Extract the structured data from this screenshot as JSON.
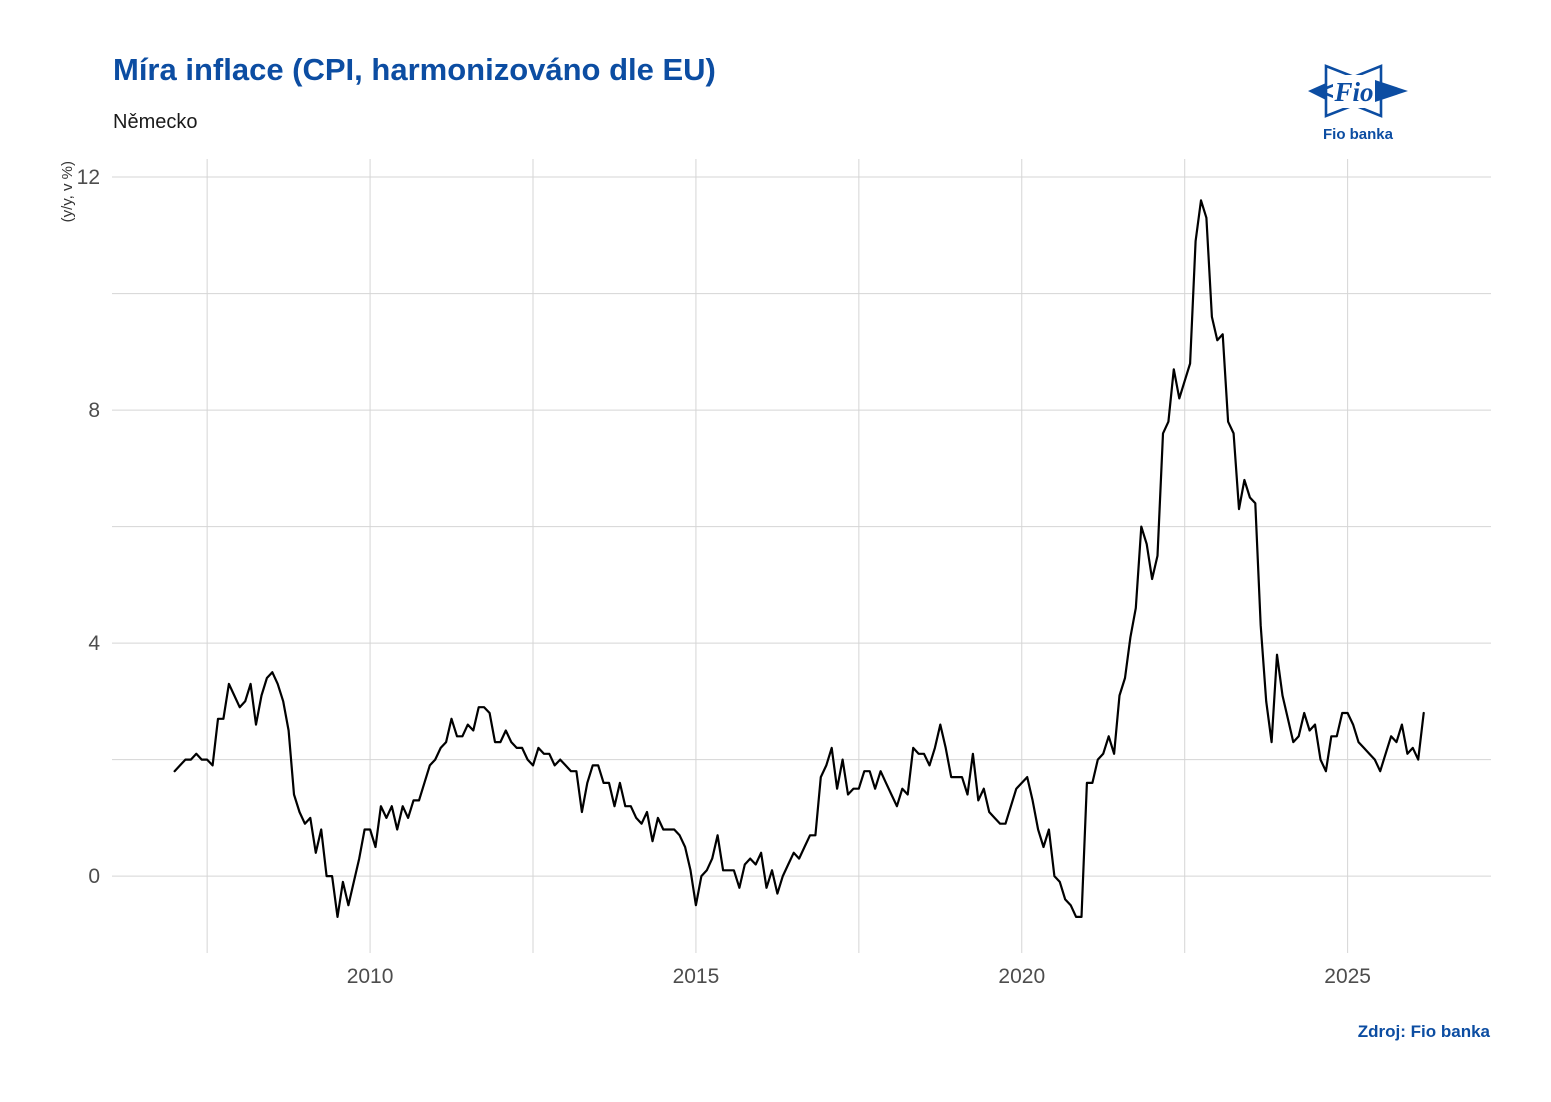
{
  "page": {
    "background": "#ffffff"
  },
  "header": {
    "title": "Míra inflace (CPI, harmonizováno dle EU)",
    "subtitle": "Německo",
    "title_color": "#0c4da2"
  },
  "logo": {
    "monogram": "Fio",
    "caption": "Fio banka",
    "color": "#0c4da2"
  },
  "footer": {
    "source": "Zdroj: Fio banka"
  },
  "chart_data": {
    "type": "line",
    "title": "Míra inflace (CPI, harmonizováno dle EU)",
    "subtitle": "Německo",
    "ylabel": "(y/y, v %)",
    "xlabel": "",
    "x_start": 2007.0,
    "x_step": 0.083333,
    "frequency": "monthly",
    "xlim": [
      2006.04,
      2027.2
    ],
    "ylim": [
      -1.32,
      12.31
    ],
    "x_ticks": [
      2010,
      2015,
      2020,
      2025
    ],
    "x_tick_labels": [
      "2010",
      "2015",
      "2020",
      "2025"
    ],
    "x_gridlines": [
      2007.5,
      2010,
      2012.5,
      2015,
      2017.5,
      2020,
      2022.5,
      2025
    ],
    "y_ticks": [
      0,
      4,
      8,
      12
    ],
    "y_tick_labels": [
      "0",
      "4",
      "8",
      "12"
    ],
    "y_gridlines": [
      0,
      2,
      4,
      6,
      8,
      10,
      12
    ],
    "grid": true,
    "legend": false,
    "line_color": "#000000",
    "grid_color": "#d5d5d5",
    "tick_label_color": "#4d4d4d",
    "axis_title_color": "#333333",
    "series": [
      {
        "values": [
          1.8,
          1.9,
          2.0,
          2.0,
          2.1,
          2.0,
          2.0,
          1.9,
          2.7,
          2.7,
          3.3,
          3.1,
          2.9,
          3.0,
          3.3,
          2.6,
          3.1,
          3.4,
          3.5,
          3.3,
          3.0,
          2.5,
          1.4,
          1.1,
          0.9,
          1.0,
          0.4,
          0.8,
          0.0,
          0.0,
          -0.7,
          -0.1,
          -0.5,
          -0.1,
          0.3,
          0.8,
          0.8,
          0.5,
          1.2,
          1.0,
          1.2,
          0.8,
          1.2,
          1.0,
          1.3,
          1.3,
          1.6,
          1.9,
          2.0,
          2.2,
          2.3,
          2.7,
          2.4,
          2.4,
          2.6,
          2.5,
          2.9,
          2.9,
          2.8,
          2.3,
          2.3,
          2.5,
          2.3,
          2.2,
          2.2,
          2.0,
          1.9,
          2.2,
          2.1,
          2.1,
          1.9,
          2.0,
          1.9,
          1.8,
          1.8,
          1.1,
          1.6,
          1.9,
          1.9,
          1.6,
          1.6,
          1.2,
          1.6,
          1.2,
          1.2,
          1.0,
          0.9,
          1.1,
          0.6,
          1.0,
          0.8,
          0.8,
          0.8,
          0.7,
          0.5,
          0.1,
          -0.5,
          0.0,
          0.1,
          0.3,
          0.7,
          0.1,
          0.1,
          0.1,
          -0.2,
          0.2,
          0.3,
          0.2,
          0.4,
          -0.2,
          0.1,
          -0.3,
          0.0,
          0.2,
          0.4,
          0.3,
          0.5,
          0.7,
          0.7,
          1.7,
          1.9,
          2.2,
          1.5,
          2.0,
          1.4,
          1.5,
          1.5,
          1.8,
          1.8,
          1.5,
          1.8,
          1.6,
          1.4,
          1.2,
          1.5,
          1.4,
          2.2,
          2.1,
          2.1,
          1.9,
          2.2,
          2.6,
          2.2,
          1.7,
          1.7,
          1.7,
          1.4,
          2.1,
          1.3,
          1.5,
          1.1,
          1.0,
          0.9,
          0.9,
          1.2,
          1.5,
          1.6,
          1.7,
          1.3,
          0.8,
          0.5,
          0.8,
          0.0,
          -0.1,
          -0.4,
          -0.5,
          -0.7,
          -0.7,
          1.6,
          1.6,
          2.0,
          2.1,
          2.4,
          2.1,
          3.1,
          3.4,
          4.1,
          4.6,
          6.0,
          5.7,
          5.1,
          5.5,
          7.6,
          7.8,
          8.7,
          8.2,
          8.5,
          8.8,
          10.9,
          11.6,
          11.3,
          9.6,
          9.2,
          9.3,
          7.8,
          7.6,
          6.3,
          6.8,
          6.5,
          6.4,
          4.3,
          3.0,
          2.3,
          3.8,
          3.1,
          2.7,
          2.3,
          2.4,
          2.8,
          2.5,
          2.6,
          2.0,
          1.8,
          2.4,
          2.4,
          2.8,
          2.8,
          2.6,
          2.3,
          2.2,
          2.1,
          2.0,
          1.8,
          2.1,
          2.4,
          2.3,
          2.6,
          2.1,
          2.2,
          2.0,
          2.8
        ]
      }
    ]
  }
}
